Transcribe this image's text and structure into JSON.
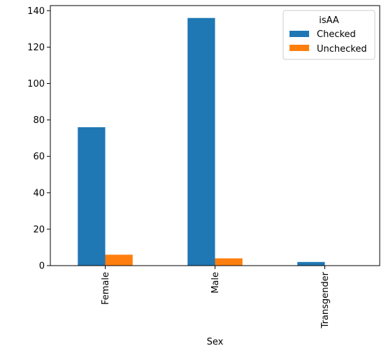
{
  "chart_data": {
    "type": "bar",
    "categories": [
      "Female",
      "Male",
      "Transgender"
    ],
    "series": [
      {
        "name": "Checked",
        "values": [
          76,
          136,
          2
        ],
        "color": "#1f77b4"
      },
      {
        "name": "Unchecked",
        "values": [
          6,
          4,
          0
        ],
        "color": "#ff7f0e"
      }
    ],
    "title": "",
    "xlabel": "Sex",
    "ylabel": "",
    "ylim": [
      0,
      142.8
    ],
    "yticks": [
      0,
      20,
      40,
      60,
      80,
      100,
      120,
      140
    ],
    "legend": {
      "title": "isAA",
      "placement": "top-right"
    },
    "grid": false
  }
}
